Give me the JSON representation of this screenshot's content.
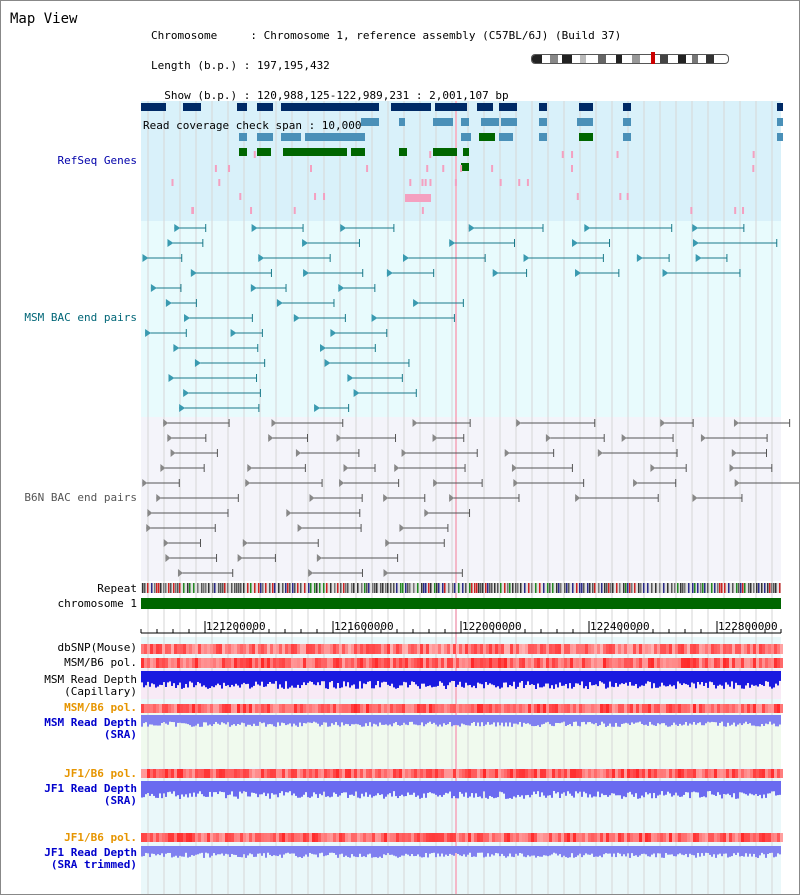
{
  "view_title": "Map View",
  "header": {
    "line1": "Chromosome     : Chromosome 1, reference assembly (C57BL/6J) (Build 37)",
    "line2": "Length (b.p.) : 197,195,432",
    "line3": "  Show (b.p.) : 120,988,125-122,989,231 : 2,001,107 bp",
    "line4": "Read coverage check span : 10,000"
  },
  "tracks": {
    "refseq": "RefSeq Genes",
    "msm_bac": "MSM BAC end pairs",
    "b6n_bac": "B6N BAC end pairs",
    "repeat": "Repeat",
    "chromosome": "chromosome 1",
    "dbsnp": "dbSNP(Mouse)",
    "msm_b6_pol_1": "MSM/B6 pol.",
    "msm_depth_cap_1": "MSM Read Depth",
    "msm_depth_cap_2": "(Capillary)",
    "msm_b6_pol_2": "MSM/B6 pol.",
    "msm_depth_sra_1": "MSM Read Depth",
    "msm_depth_sra_2": "(SRA)",
    "jf1_b6_pol_1": "JF1/B6 pol.",
    "jf1_depth_sra_1": "JF1 Read Depth",
    "jf1_depth_sra_2": "(SRA)",
    "jf1_b6_pol_2": "JF1/B6 pol.",
    "jf1_depth_trim_1": "JF1 Read Depth",
    "jf1_depth_trim_2": "(SRA trimmed)"
  },
  "ruler": {
    "ticks": [
      "121200000",
      "121600000",
      "122000000",
      "122400000",
      "122800000"
    ]
  },
  "colors": {
    "refseq_bg": "#d9f1fa",
    "msm_bg": "#e8fbfd",
    "b6n_bg": "#f4f4fa",
    "refseq_label": "#0000aa",
    "msm_label": "#006677",
    "b6n_label": "#555555",
    "pol_label": "#e69500",
    "depth_label": "#0000cc",
    "chromosome_bar": "#006600"
  }
}
